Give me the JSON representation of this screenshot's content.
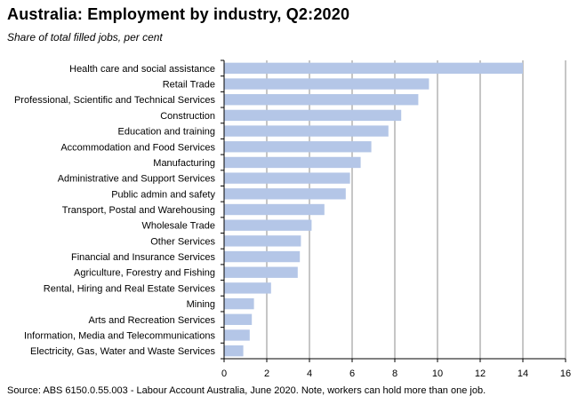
{
  "title": "Australia:  Employment  by industry,  Q2:2020",
  "subtitle": "Share of total filled jobs, per cent",
  "source": "Source: ABS 6150.0.55.003 - Labour Account Australia, June 2020.  Note, workers can hold more than one job.",
  "colors": {
    "bar": "#b4c6e7",
    "grid": "#8c8c8c",
    "axis": "#000000"
  },
  "chart_data": {
    "type": "bar",
    "orientation": "horizontal",
    "title": "Australia:  Employment  by industry,  Q2:2020",
    "subtitle": "Share of total filled jobs, per cent",
    "xlabel": "",
    "ylabel": "",
    "xlim": [
      0,
      16
    ],
    "x_ticks": [
      0,
      2,
      4,
      6,
      8,
      10,
      12,
      14,
      16
    ],
    "grid": true,
    "categories": [
      "Health care and social assistance",
      "Retail Trade",
      "Professional, Scientific and Technical Services",
      "Construction",
      "Education and training",
      "Accommodation and Food Services",
      "Manufacturing",
      "Administrative and Support Services",
      "Public admin and safety",
      "Transport, Postal and Warehousing",
      "Wholesale Trade",
      "Other Services",
      "Financial and Insurance Services",
      "Agriculture, Forestry and Fishing",
      "Rental, Hiring and Real Estate Services",
      "Mining",
      "Arts and Recreation Services",
      "Information, Media and Telecommunications",
      "Electricity, Gas, Water and Waste Services"
    ],
    "values": [
      14.0,
      9.6,
      9.1,
      8.3,
      7.7,
      6.9,
      6.4,
      5.9,
      5.7,
      4.7,
      4.1,
      3.6,
      3.55,
      3.45,
      2.2,
      1.4,
      1.3,
      1.2,
      0.9
    ]
  }
}
